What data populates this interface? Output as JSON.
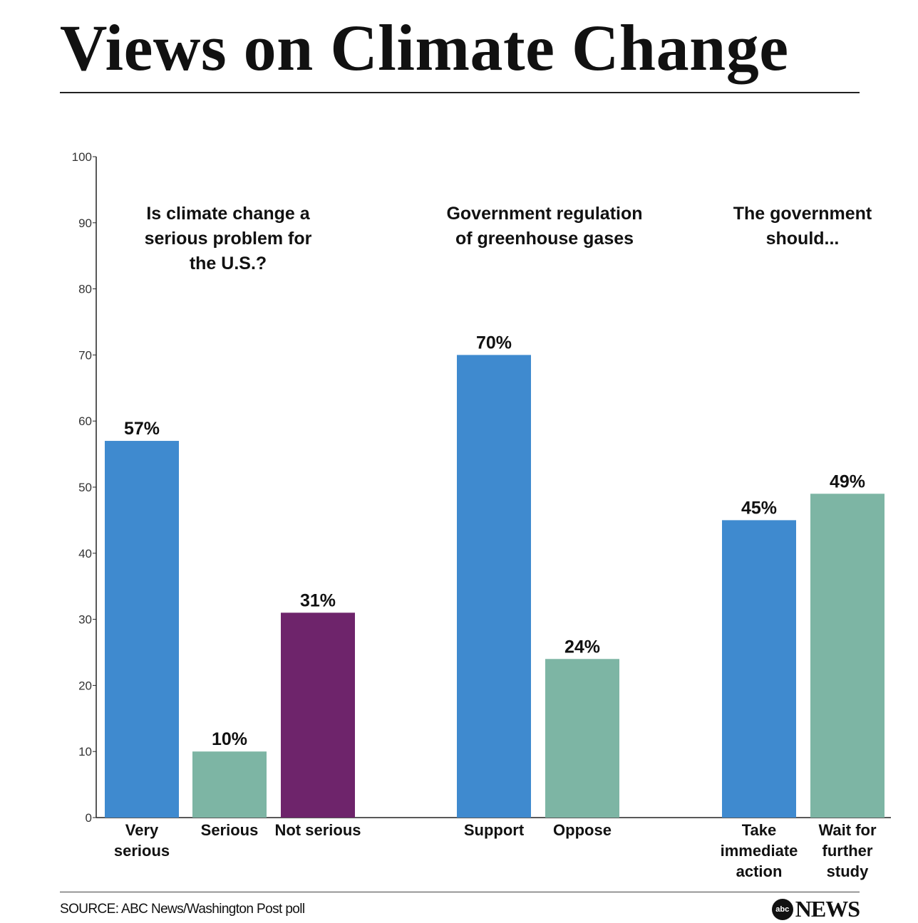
{
  "title": "Views on Climate Change",
  "source": "SOURCE: ABC News/Washington Post poll",
  "logo": {
    "badge": "abc",
    "text": "NEWS"
  },
  "colors": {
    "blue": "#3f8acf",
    "teal": "#7db5a4",
    "purple": "#6e246b"
  },
  "chart_data": {
    "type": "bar",
    "ylim": [
      0,
      100
    ],
    "yticks": [
      0,
      10,
      20,
      30,
      40,
      50,
      60,
      70,
      80,
      90,
      100
    ],
    "grid": false,
    "groups": [
      {
        "title": [
          "Is climate change a",
          "serious problem for",
          "the U.S.?"
        ],
        "bars": [
          {
            "category": [
              "Very",
              "serious"
            ],
            "value": 57,
            "label": "57%",
            "color": "#3f8acf"
          },
          {
            "category": [
              "Serious"
            ],
            "value": 10,
            "label": "10%",
            "color": "#7db5a4"
          },
          {
            "category": [
              "Not serious"
            ],
            "value": 31,
            "label": "31%",
            "color": "#6e246b"
          }
        ]
      },
      {
        "title": [
          "Government regulation",
          "of greenhouse gases"
        ],
        "bars": [
          {
            "category": [
              "Support"
            ],
            "value": 70,
            "label": "70%",
            "color": "#3f8acf"
          },
          {
            "category": [
              "Oppose"
            ],
            "value": 24,
            "label": "24%",
            "color": "#7db5a4"
          }
        ]
      },
      {
        "title": [
          "The government",
          "should..."
        ],
        "bars": [
          {
            "category": [
              "Take",
              "immediate",
              "action"
            ],
            "value": 45,
            "label": "45%",
            "color": "#3f8acf"
          },
          {
            "category": [
              "Wait for",
              "further",
              "study"
            ],
            "value": 49,
            "label": "49%",
            "color": "#7db5a4"
          }
        ]
      }
    ]
  }
}
